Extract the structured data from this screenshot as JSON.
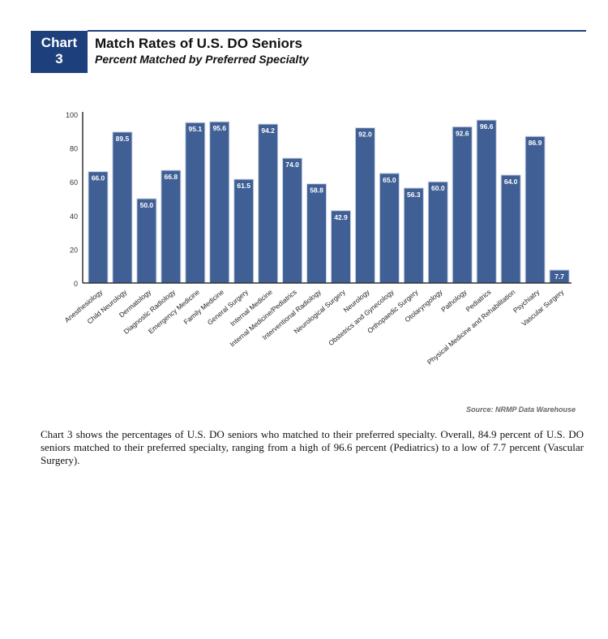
{
  "header": {
    "badge_line1": "Chart",
    "badge_line2": "3",
    "title": "Match Rates of U.S. DO Seniors",
    "subtitle": "Percent Matched by Preferred Specialty"
  },
  "chart_data": {
    "type": "bar",
    "title": "Match Rates of U.S. DO Seniors",
    "subtitle": "Percent Matched by Preferred Specialty",
    "xlabel": "",
    "ylabel": "",
    "ylim": [
      0,
      100
    ],
    "yticks": [
      0,
      20,
      40,
      60,
      80,
      100
    ],
    "categories": [
      "Anesthesiology",
      "Child Neurology",
      "Dermatology",
      "Diagnostic Radiology",
      "Emergency Medicine",
      "Family Medicine",
      "General Surgery",
      "Internal Medicine",
      "Internal Medicine/Pediatrics",
      "Interventional Radiology",
      "Neurological Surgery",
      "Neurology",
      "Obstetrics and Gynecology",
      "Orthopaedic Surgery",
      "Otolaryngology",
      "Pathology",
      "Pediatrics",
      "Physical Medicine and Rehabilitation",
      "Psychiatry",
      "Vascular Surgery"
    ],
    "values": [
      66.0,
      89.5,
      50.0,
      66.8,
      95.1,
      95.6,
      61.5,
      94.2,
      74.0,
      58.8,
      42.9,
      92.0,
      65.0,
      56.3,
      60.0,
      92.6,
      96.6,
      64.0,
      86.9,
      7.7
    ],
    "value_labels": [
      "66.0",
      "89.5",
      "50.0",
      "66.8",
      "95.1",
      "95.6",
      "61.5",
      "94.2",
      "74.0",
      "58.8",
      "42.9",
      "92.0",
      "65.0",
      "56.3",
      "60.0",
      "92.6",
      "96.6",
      "64.0",
      "86.9",
      "7.7"
    ],
    "bar_color": "#3f5f95",
    "grid": false,
    "legend": "none"
  },
  "source": "Source: NRMP Data Warehouse",
  "paragraph": "Chart 3 shows the percentages of U.S. DO seniors who matched to their preferred specialty. Overall, 84.9 percent of U.S. DO seniors matched to their preferred specialty, ranging from a high of 96.6 percent (Pediatrics) to a low of 7.7 percent (Vascular Surgery)."
}
